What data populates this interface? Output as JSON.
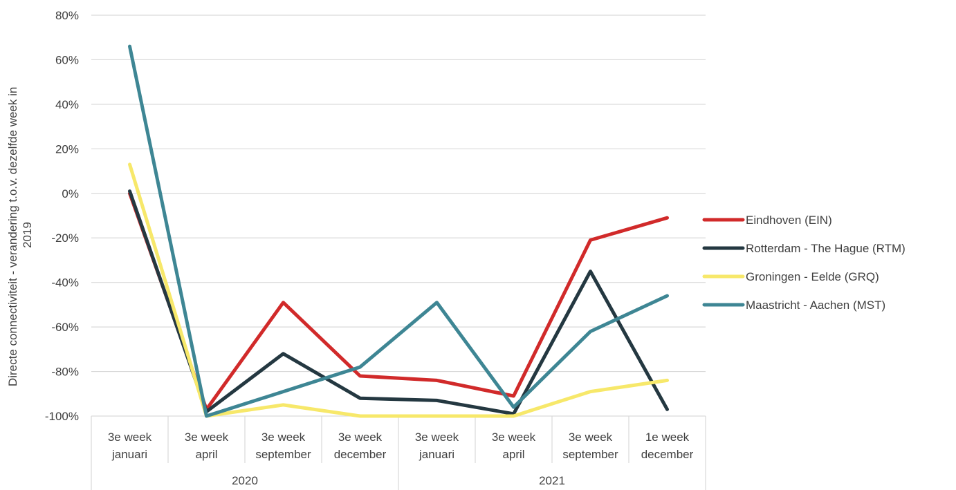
{
  "chart_data": {
    "type": "line",
    "title": "",
    "ylabel": "Directe connectiviteit - verandering t.o.v. dezelfde week in 2019",
    "ylabel_lines": [
      "Directe connectiviteit - verandering t.o.v. dezelfde week in",
      "2019"
    ],
    "xlabel": "",
    "ylim": [
      -100,
      80
    ],
    "yticks": [
      80,
      60,
      40,
      20,
      0,
      -20,
      -40,
      -60,
      -80,
      -100
    ],
    "ytick_labels": [
      "80%",
      "60%",
      "40%",
      "20%",
      "0%",
      "-20%",
      "-40%",
      "-60%",
      "-80%",
      "-100%"
    ],
    "grid": true,
    "legend_position": "right",
    "categories": [
      {
        "line1": "3e week",
        "line2": "januari"
      },
      {
        "line1": "3e week",
        "line2": "april"
      },
      {
        "line1": "3e week",
        "line2": "september"
      },
      {
        "line1": "3e week",
        "line2": "december"
      },
      {
        "line1": "3e week",
        "line2": "januari"
      },
      {
        "line1": "3e week",
        "line2": "april"
      },
      {
        "line1": "3e week",
        "line2": "september"
      },
      {
        "line1": "1e week",
        "line2": "december"
      }
    ],
    "groups": [
      {
        "label": "2020",
        "span": 4
      },
      {
        "label": "2021",
        "span": 4
      }
    ],
    "series": [
      {
        "name": "Eindhoven (EIN)",
        "color": "#d12a2a",
        "values": [
          0,
          -97,
          -49,
          -82,
          -84,
          -91,
          -21,
          -11
        ]
      },
      {
        "name": "Rotterdam - The Hague (RTM)",
        "color": "#243841",
        "values": [
          1,
          -98,
          -72,
          -92,
          -93,
          -99,
          -35,
          -97
        ]
      },
      {
        "name": "Groningen - Eelde (GRQ)",
        "color": "#f7e86a",
        "values": [
          13,
          -100,
          -95,
          -100,
          -100,
          -100,
          -89,
          -84
        ]
      },
      {
        "name": "Maastricht - Aachen (MST)",
        "color": "#3e8694",
        "values": [
          66,
          -100,
          -89,
          -78,
          -49,
          -96,
          -62,
          -46
        ]
      }
    ]
  }
}
